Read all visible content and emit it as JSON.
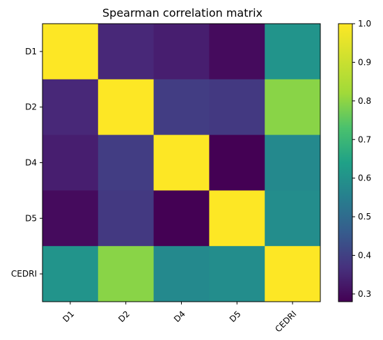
{
  "chart_data": {
    "type": "heatmap",
    "title": "Spearman correlation matrix",
    "xlabel": "",
    "ylabel": "",
    "x_categories": [
      "D1",
      "D2",
      "D4",
      "D5",
      "CEDRI"
    ],
    "y_categories": [
      "D1",
      "D2",
      "D4",
      "D5",
      "CEDRI"
    ],
    "values": [
      [
        1.0,
        0.36,
        0.34,
        0.3,
        0.65
      ],
      [
        0.36,
        1.0,
        0.41,
        0.4,
        0.87
      ],
      [
        0.34,
        0.41,
        1.0,
        0.28,
        0.62
      ],
      [
        0.3,
        0.4,
        0.28,
        1.0,
        0.63
      ],
      [
        0.65,
        0.87,
        0.62,
        0.63,
        1.0
      ]
    ],
    "colormap": "viridis",
    "vmin": 0.28,
    "vmax": 1.0,
    "colorbar": {
      "ticks": [
        "0.3",
        "0.4",
        "0.5",
        "0.6",
        "0.7",
        "0.8",
        "0.9",
        "1.0"
      ],
      "placement": "right"
    },
    "grid": false
  }
}
